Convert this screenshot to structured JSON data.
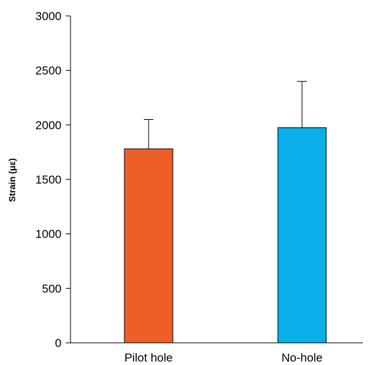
{
  "chart_data": {
    "type": "bar",
    "title": "",
    "xlabel": "",
    "ylabel": "Strain (με)",
    "ylim": [
      0,
      3000
    ],
    "yticks": [
      0,
      500,
      1000,
      1500,
      2000,
      2500,
      3000
    ],
    "categories": [
      "Pilot hole",
      "No-hole"
    ],
    "values": [
      1780,
      1975
    ],
    "errors_upper": [
      270,
      425
    ],
    "colors": [
      "#ee5f27",
      "#0aaee8"
    ],
    "grid": false,
    "legend": "none"
  }
}
